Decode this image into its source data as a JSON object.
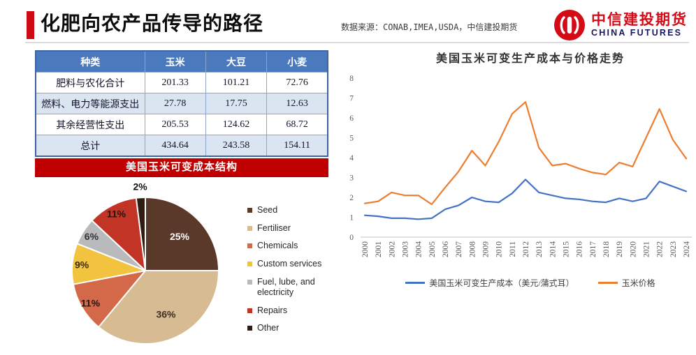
{
  "slide": {
    "title": "化肥向农产品传导的路径",
    "source_note": "数据来源：CONAB,IMEA,USDA，中信建投期货",
    "logo": {
      "cn": "中信建投期货",
      "en": "CHINA FUTURES"
    }
  },
  "colors": {
    "accent_red": "#c00000",
    "title_bar_red": "#cf0a14",
    "table_header_blue": "#4a79bd",
    "table_alt_row": "#dbe5f2",
    "cost_line_blue": "#4472c4",
    "price_line_orange": "#ed7d31",
    "logo_red": "#d40a17",
    "logo_navy": "#16165c"
  },
  "table": {
    "headers": [
      "种类",
      "玉米",
      "大豆",
      "小麦"
    ],
    "rows": [
      {
        "label": "肥料与农化合计",
        "values": [
          "201.33",
          "101.21",
          "72.76"
        ]
      },
      {
        "label": "燃料、电力等能源支出",
        "values": [
          "27.78",
          "17.75",
          "12.63"
        ]
      },
      {
        "label": "其余经营性支出",
        "values": [
          "205.53",
          "124.62",
          "68.72"
        ]
      },
      {
        "label": "总计",
        "values": [
          "434.64",
          "243.58",
          "154.11"
        ]
      }
    ]
  },
  "chart_data": [
    {
      "type": "pie",
      "title": "美国玉米可变成本结构",
      "labels": [
        "Seed",
        "Fertiliser",
        "Chemicals",
        "Custom services",
        "Fuel, lube, and electricity",
        "Repairs",
        "Other"
      ],
      "values": [
        25,
        36,
        11,
        9,
        6,
        11,
        2
      ],
      "colors": [
        "#5a382a",
        "#d7bb92",
        "#d4694a",
        "#f1c33f",
        "#b9babc",
        "#c23526",
        "#2f1c12"
      ],
      "label_colors": [
        "#ffffff",
        "#3b2f1f",
        "#26140c",
        "#3a2a10",
        "#333333",
        "#26140c",
        "#111111"
      ],
      "start_angle_deg": 0,
      "direction": "clockwise",
      "label_format": "percent",
      "legend_position": "right"
    },
    {
      "type": "line",
      "title": "美国玉米可变生产成本与价格走势",
      "x": [
        "2000",
        "2001",
        "2002",
        "2003",
        "2004",
        "2005",
        "2006",
        "2007",
        "2008",
        "2009",
        "2010",
        "2011",
        "2012",
        "2013",
        "2014",
        "2015",
        "2016",
        "2017",
        "2018",
        "2019",
        "2020",
        "2021",
        "2022",
        "2023",
        "2024"
      ],
      "series": [
        {
          "name": "美国玉米可变生产成本（美元/蒲式耳）",
          "color": "#4472c4",
          "values": [
            1.1,
            1.05,
            0.95,
            0.95,
            0.9,
            0.95,
            1.4,
            1.6,
            2.0,
            1.8,
            1.75,
            2.2,
            2.9,
            2.25,
            2.1,
            1.95,
            1.9,
            1.8,
            1.75,
            1.95,
            1.8,
            1.95,
            2.8,
            2.55,
            2.3
          ]
        },
        {
          "name": "玉米价格",
          "color": "#ed7d31",
          "values": [
            1.7,
            1.8,
            2.25,
            2.1,
            2.1,
            1.65,
            2.5,
            3.3,
            4.35,
            3.6,
            4.8,
            6.2,
            6.8,
            4.5,
            3.6,
            3.7,
            3.45,
            3.25,
            3.15,
            3.75,
            3.55,
            5.0,
            6.45,
            4.9,
            3.95
          ]
        }
      ],
      "ylim": [
        0,
        8
      ],
      "yticks": [
        0,
        1,
        2,
        3,
        4,
        5,
        6,
        7,
        8
      ],
      "grid": false,
      "legend_position": "bottom"
    }
  ]
}
